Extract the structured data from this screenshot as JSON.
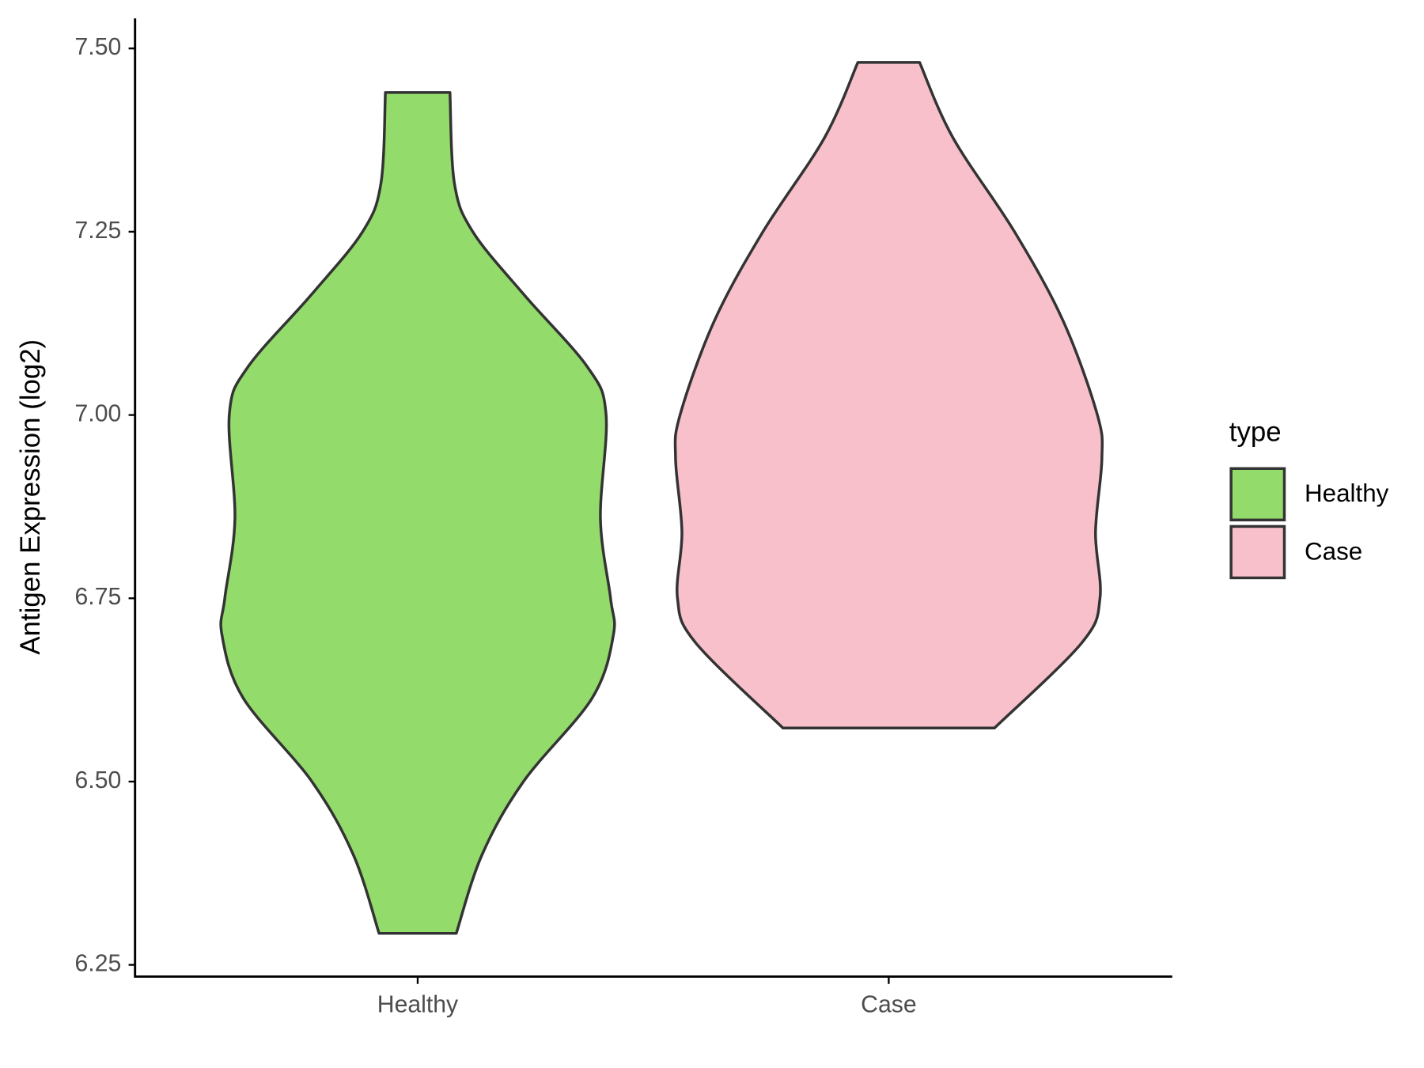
{
  "chart_data": {
    "type": "violin",
    "y_label": "Antigen Expression (log2)",
    "categories": [
      "Healthy",
      "Case"
    ],
    "series": [
      {
        "name": "Healthy",
        "color": "#93DB6B",
        "y": [
          7.44,
          7.316,
          7.25,
          7.165,
          7.065,
          7.0,
          6.858,
          6.75,
          6.7,
          6.614,
          6.5,
          6.4,
          6.293
        ],
        "widths": [
          0.137,
          0.156,
          0.234,
          0.449,
          0.722,
          0.8,
          0.776,
          0.819,
          0.831,
          0.741,
          0.449,
          0.273,
          0.164
        ]
      },
      {
        "name": "Case",
        "color": "#F7C0CB",
        "y": [
          7.481,
          7.378,
          7.25,
          7.128,
          7.0,
          6.94,
          6.84,
          6.75,
          6.689,
          6.573
        ],
        "widths": [
          0.131,
          0.273,
          0.534,
          0.741,
          0.886,
          0.905,
          0.878,
          0.897,
          0.819,
          0.449
        ]
      }
    ],
    "ylim": [
      6.234,
      7.541
    ],
    "yticks": [
      {
        "value": 7.5,
        "label": "7.50"
      },
      7.25,
      {
        "value": 7.0,
        "label": "7.00"
      },
      6.75,
      {
        "value": 6.5,
        "label": "6.50"
      },
      6.25
    ],
    "legend_title": "type",
    "legend_position": "right",
    "grid": false
  }
}
